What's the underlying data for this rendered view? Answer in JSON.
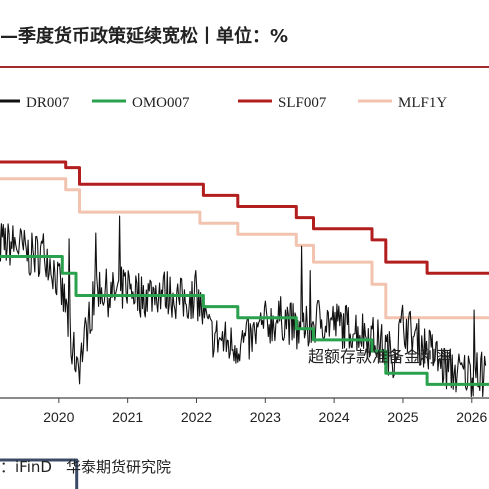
{
  "header": {
    "title": "—季度货币政策延续宽松丨单位：%"
  },
  "source": {
    "label": "：iFinD",
    "org": "华泰期货研究院"
  },
  "chart_data": {
    "type": "line",
    "title": "—季度货币政策延续宽松丨单位：%",
    "xlabel": "",
    "ylabel": "",
    "x_ticks": [
      "9",
      "2020",
      "2021",
      "2022",
      "2023",
      "2024",
      "2025",
      "2026"
    ],
    "xlim": [
      2019.0,
      2026.25
    ],
    "ylim": [
      0.9,
      3.85
    ],
    "grid": false,
    "legend_position": "top",
    "annotations": [
      {
        "text": "超额存款准备金利率",
        "x": 2024.6,
        "y": 0.72
      }
    ],
    "series": [
      {
        "name": "DR007",
        "color": "#111111",
        "style": "noisy",
        "points": [
          [
            2019.0,
            2.68
          ],
          [
            2019.4,
            2.65
          ],
          [
            2019.6,
            2.55
          ],
          [
            2019.8,
            2.6
          ],
          [
            2019.95,
            2.4
          ],
          [
            2020.1,
            2.1
          ],
          [
            2020.2,
            1.7
          ],
          [
            2020.3,
            1.6
          ],
          [
            2020.45,
            2.0
          ],
          [
            2020.55,
            2.3
          ],
          [
            2020.75,
            2.2
          ],
          [
            2020.9,
            2.25
          ],
          [
            2021.0,
            2.3
          ],
          [
            2021.2,
            2.2
          ],
          [
            2021.5,
            2.25
          ],
          [
            2021.8,
            2.15
          ],
          [
            2022.0,
            2.2
          ],
          [
            2022.2,
            1.85
          ],
          [
            2022.5,
            1.75
          ],
          [
            2022.8,
            1.8
          ],
          [
            2023.0,
            1.95
          ],
          [
            2023.3,
            2.0
          ],
          [
            2023.5,
            1.85
          ],
          [
            2023.8,
            2.0
          ],
          [
            2024.0,
            1.95
          ],
          [
            2024.3,
            1.9
          ],
          [
            2024.5,
            1.85
          ],
          [
            2024.7,
            1.75
          ],
          [
            2024.85,
            1.65
          ],
          [
            2025.0,
            1.95
          ],
          [
            2025.2,
            1.8
          ],
          [
            2025.4,
            1.7
          ],
          [
            2025.6,
            1.55
          ],
          [
            2025.8,
            1.5
          ],
          [
            2026.0,
            1.5
          ],
          [
            2026.2,
            1.48
          ]
        ]
      },
      {
        "name": "OMO007",
        "color": "#2aa14d",
        "style": "step",
        "points": [
          [
            2019.0,
            2.55
          ],
          [
            2020.05,
            2.4
          ],
          [
            2020.25,
            2.2
          ],
          [
            2022.1,
            2.1
          ],
          [
            2022.6,
            2.0
          ],
          [
            2023.45,
            1.9
          ],
          [
            2023.7,
            1.8
          ],
          [
            2024.55,
            1.7
          ],
          [
            2024.75,
            1.5
          ],
          [
            2025.35,
            1.4
          ],
          [
            2026.25,
            1.4
          ]
        ]
      },
      {
        "name": "SLF007",
        "color": "#b21e1e",
        "style": "step",
        "points": [
          [
            2019.0,
            3.4
          ],
          [
            2020.1,
            3.35
          ],
          [
            2020.3,
            3.2
          ],
          [
            2022.1,
            3.1
          ],
          [
            2022.6,
            3.0
          ],
          [
            2023.45,
            2.9
          ],
          [
            2023.7,
            2.8
          ],
          [
            2024.55,
            2.7
          ],
          [
            2024.75,
            2.5
          ],
          [
            2025.35,
            2.4
          ],
          [
            2026.25,
            2.4
          ]
        ]
      },
      {
        "name": "MLF1Y",
        "color": "#f2c4b0",
        "style": "step",
        "points": [
          [
            2019.0,
            3.25
          ],
          [
            2020.1,
            3.15
          ],
          [
            2020.3,
            2.95
          ],
          [
            2022.05,
            2.85
          ],
          [
            2022.6,
            2.75
          ],
          [
            2023.45,
            2.65
          ],
          [
            2023.7,
            2.5
          ],
          [
            2024.55,
            2.3
          ],
          [
            2024.75,
            2.0
          ],
          [
            2026.25,
            2.0
          ]
        ]
      },
      {
        "name": "",
        "color": "#3b4a66",
        "style": "step",
        "points": [
          [
            2019.0,
            0.72
          ],
          [
            2020.25,
            0.72
          ],
          [
            2020.26,
            0.35
          ],
          [
            2026.25,
            0.35
          ]
        ]
      }
    ]
  }
}
